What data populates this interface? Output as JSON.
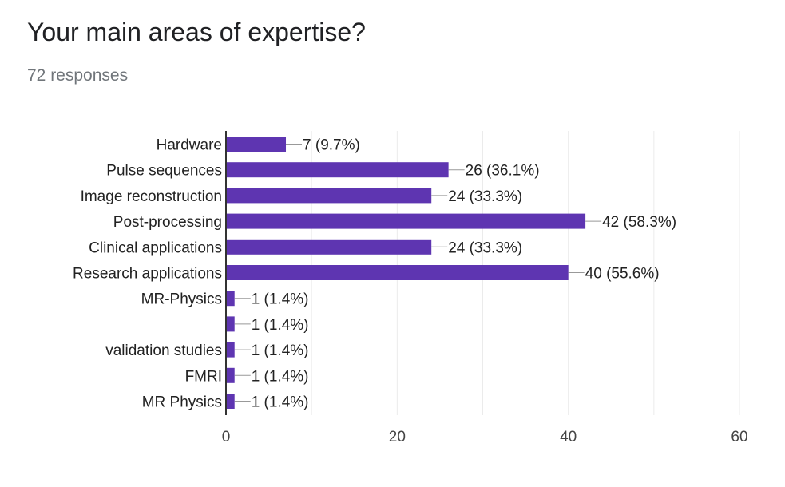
{
  "header": {
    "title": "Your main areas of expertise?",
    "responses": "72 responses"
  },
  "chart_data": {
    "type": "bar",
    "orientation": "horizontal",
    "categories": [
      "Hardware",
      "Pulse sequences",
      "Image reconstruction",
      "Post-processing",
      "Clinical applications",
      "Research applications",
      "MR-Physics",
      "",
      "validation studies",
      "FMRI",
      "MR Physics"
    ],
    "values": [
      7,
      26,
      24,
      42,
      24,
      40,
      1,
      1,
      1,
      1,
      1
    ],
    "data_labels": [
      "7 (9.7%)",
      "26 (36.1%)",
      "24 (33.3%)",
      "42 (58.3%)",
      "24 (33.3%)",
      "40 (55.6%)",
      "1 (1.4%)",
      "1 (1.4%)",
      "1 (1.4%)",
      "1 (1.4%)",
      "1 (1.4%)"
    ],
    "xlim": [
      0,
      60
    ],
    "xticks": [
      0,
      20,
      40,
      60
    ],
    "grid": true,
    "bar_color": "#5e35b1"
  }
}
